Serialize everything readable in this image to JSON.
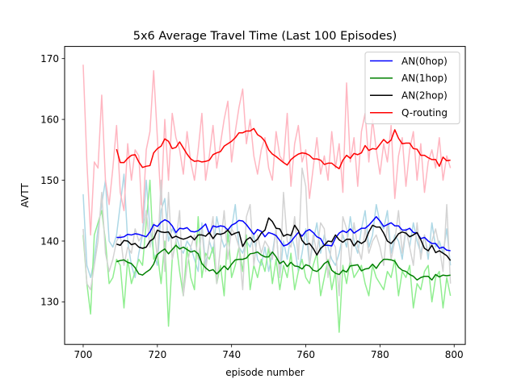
{
  "chart_data": {
    "type": "line",
    "title": "5x6 Average Travel Time (Last 100 Episodes)",
    "xlabel": "episode number",
    "ylabel": "AVTT",
    "xlim": [
      695,
      803
    ],
    "ylim": [
      123,
      172
    ],
    "xticks": [
      700,
      720,
      740,
      760,
      780,
      800
    ],
    "yticks": [
      130,
      140,
      150,
      160,
      170
    ],
    "grid": false,
    "legend_position": "top-right",
    "raw_series": [
      {
        "color": "#add8e6",
        "x_start": 700,
        "values": [
          147.7,
          136,
          134,
          137,
          142,
          146,
          150,
          140,
          139,
          141,
          146,
          151,
          140,
          136,
          134,
          138,
          141,
          150,
          142,
          138,
          136,
          145,
          147,
          140,
          142,
          141,
          139,
          138,
          140,
          139,
          137,
          135,
          143,
          136,
          140,
          138,
          144,
          141,
          139,
          140,
          142,
          146,
          139,
          138,
          140,
          139,
          141,
          137,
          136,
          139,
          135,
          138,
          142,
          134,
          140,
          137,
          141,
          139,
          135,
          138,
          142,
          136,
          140,
          143,
          138,
          141,
          139,
          137,
          136,
          138,
          141,
          139,
          144,
          140,
          138,
          142,
          145,
          139,
          141,
          146,
          143,
          142,
          145,
          138,
          141,
          140,
          137,
          142,
          139,
          143,
          140,
          138,
          141,
          137,
          143,
          139,
          140,
          138,
          142,
          136
        ]
      },
      {
        "color": "#90ee90",
        "x_start": 700,
        "values": [
          141,
          133,
          128,
          141,
          143,
          145,
          140,
          133,
          134,
          137,
          136,
          129,
          137,
          133,
          135,
          137,
          136,
          143,
          150,
          137,
          138,
          133,
          140,
          126,
          137,
          140,
          135,
          131,
          139,
          134,
          132,
          144,
          134,
          138,
          137,
          139,
          133,
          136,
          131,
          142,
          134,
          136,
          139,
          135,
          141,
          132,
          136,
          134,
          137,
          135,
          139,
          133,
          137,
          132,
          136,
          134,
          138,
          132,
          135,
          137,
          134,
          133,
          136,
          138,
          131,
          134,
          137,
          132,
          135,
          125,
          136,
          133,
          137,
          134,
          135,
          136,
          133,
          131,
          136,
          134,
          133,
          132,
          135,
          134,
          137,
          131,
          135,
          134,
          136,
          129,
          133,
          132,
          135,
          136,
          130,
          134,
          135,
          129,
          134,
          131
        ]
      },
      {
        "color": "#ffb6c1",
        "x_start": 700,
        "values": [
          169,
          153,
          141,
          153,
          152,
          164,
          150,
          146,
          152,
          159,
          148,
          145,
          156,
          150,
          155,
          154,
          143,
          155,
          158,
          168,
          157,
          146,
          160,
          150,
          161,
          157,
          155,
          151,
          158,
          153,
          150,
          155,
          161,
          150,
          154,
          159,
          152,
          156,
          160,
          163,
          153,
          158,
          162,
          165,
          156,
          160,
          154,
          151,
          155,
          157,
          152,
          150,
          158,
          154,
          153,
          161,
          149,
          156,
          159,
          153,
          155,
          147,
          152,
          157,
          151,
          154,
          150,
          158,
          152,
          156,
          148,
          166,
          153,
          157,
          149,
          158,
          161,
          153,
          160,
          155,
          151,
          156,
          153,
          159,
          147,
          154,
          157,
          149,
          155,
          158,
          150,
          156,
          148,
          153,
          155,
          152,
          157,
          150,
          154,
          152
        ]
      },
      {
        "color": "#d3d3d3",
        "x_start": 700,
        "values": [
          142,
          133,
          132,
          136,
          140,
          148,
          138,
          135,
          137,
          140,
          141,
          136,
          139,
          138,
          142,
          140,
          141,
          145,
          139,
          143,
          137,
          150,
          135,
          148,
          137,
          140,
          145,
          131,
          136,
          139,
          141,
          137,
          142,
          135,
          140,
          144,
          133,
          139,
          145,
          137,
          142,
          141,
          139,
          132,
          144,
          146,
          136,
          141,
          138,
          140,
          139,
          137,
          142,
          134,
          148,
          140,
          139,
          144,
          137,
          152,
          149,
          136,
          141,
          138,
          143,
          142,
          134,
          140,
          139,
          131,
          144,
          142,
          136,
          143,
          139,
          137,
          142,
          138,
          140,
          141,
          139,
          136,
          143,
          137,
          140,
          145,
          138,
          142,
          139,
          136,
          143,
          137,
          141,
          138,
          140,
          142,
          139,
          135,
          146,
          133
        ]
      }
    ],
    "series": [
      {
        "name": "AN(0hop)",
        "color": "#0000ff",
        "x_start": 709,
        "values": [
          140.6,
          140.6,
          140.7,
          141.1,
          141.0,
          141.2,
          141.1,
          140.9,
          140.7,
          141.5,
          142.7,
          142.4,
          143.1,
          143.5,
          143.2,
          142.5,
          141.4,
          142.1,
          142.0,
          142.2,
          141.6,
          141.5,
          141.7,
          142.2,
          142.8,
          141.2,
          142.5,
          142.3,
          142.5,
          142.4,
          141.8,
          142.6,
          142.9,
          143.4,
          143.3,
          142.7,
          141.9,
          141.1,
          141.9,
          141.6,
          140.7,
          141.4,
          141.2,
          140.9,
          140.1,
          139.2,
          139.4,
          139.9,
          140.7,
          141.4,
          140.8,
          141.6,
          141.9,
          141.4,
          140.7,
          140.4,
          139.3,
          139.3,
          139.2,
          140.5,
          141.3,
          141.7,
          141.4,
          142.0,
          141.3,
          141.7,
          142.1,
          142.1,
          142.6,
          143.3,
          144.0,
          143.3,
          142.4,
          142.7,
          143.0,
          142.5,
          142.5,
          141.8,
          141.8,
          142.1,
          141.4,
          141.3,
          140.4,
          140.6,
          140.0,
          139.6,
          139.6,
          138.8,
          139.0,
          138.5,
          138.4
        ]
      },
      {
        "name": "AN(1hop)",
        "color": "#008000",
        "x_start": 709,
        "values": [
          136.6,
          136.8,
          136.9,
          136.5,
          136.3,
          135.6,
          134.6,
          134.4,
          134.9,
          135.3,
          136.2,
          137.8,
          138.3,
          138.7,
          137.9,
          138.6,
          139.3,
          138.7,
          139.0,
          138.6,
          138.2,
          138.4,
          137.9,
          136.3,
          135.6,
          135.1,
          135.3,
          134.6,
          135.2,
          135.9,
          135.3,
          136.2,
          136.9,
          137.0,
          137.0,
          137.2,
          137.9,
          138.0,
          138.2,
          137.7,
          137.4,
          137.4,
          138.2,
          137.4,
          136.3,
          136.7,
          135.8,
          136.5,
          135.9,
          135.8,
          135.4,
          136.1,
          135.9,
          135.2,
          135.0,
          135.5,
          136.3,
          136.7,
          135.2,
          134.7,
          134.5,
          135.2,
          134.9,
          135.9,
          136.0,
          136.1,
          135.1,
          135.4,
          135.5,
          136.2,
          135.5,
          136.4,
          137.0,
          137.0,
          136.9,
          136.7,
          135.7,
          135.2,
          135.0,
          134.5,
          134.2,
          133.6,
          134.0,
          134.2,
          134.2,
          133.6,
          134.5,
          134.1,
          134.4,
          134.3,
          134.4
        ]
      },
      {
        "name": "AN(2hop)",
        "color": "#000000",
        "x_start": 709,
        "values": [
          139.5,
          139.3,
          140.1,
          140.0,
          139.4,
          139.6,
          139.0,
          138.8,
          139.0,
          140.0,
          140.4,
          141.8,
          141.5,
          141.4,
          141.5,
          140.5,
          140.8,
          140.5,
          140.3,
          140.5,
          140.8,
          140.2,
          141.0,
          141.0,
          140.8,
          141.4,
          140.4,
          141.2,
          141.1,
          141.3,
          141.8,
          141.0,
          141.3,
          141.5,
          139.1,
          140.2,
          140.6,
          139.8,
          140.3,
          141.3,
          141.8,
          143.8,
          143.2,
          142.1,
          142.0,
          140.8,
          141.1,
          140.9,
          142.6,
          141.7,
          140.1,
          139.4,
          139.6,
          138.8,
          137.7,
          138.8,
          139.3,
          140.0,
          139.9,
          141.0,
          140.2,
          139.8,
          140.3,
          140.3,
          139.2,
          140.0,
          139.6,
          140.0,
          141.5,
          142.6,
          142.3,
          142.3,
          141.3,
          140.0,
          139.6,
          140.3,
          141.2,
          141.5,
          141.3,
          140.7,
          141.0,
          141.4,
          140.2,
          138.8,
          138.4,
          139.3,
          138.1,
          138.4,
          138.0,
          137.6,
          136.8
        ]
      },
      {
        "name": "Q-routing",
        "color": "#ff0000",
        "x_start": 709,
        "values": [
          155.1,
          152.9,
          152.9,
          153.6,
          154.1,
          154.2,
          153.0,
          152.1,
          152.3,
          152.4,
          154.5,
          155.2,
          155.6,
          156.8,
          156.4,
          155.2,
          155.4,
          156.3,
          155.3,
          154.3,
          153.5,
          153.1,
          153.2,
          153.0,
          153.1,
          153.3,
          154.2,
          154.5,
          154.7,
          155.6,
          156.0,
          156.4,
          157.0,
          157.8,
          157.8,
          158.1,
          158.1,
          158.5,
          157.5,
          157.1,
          156.4,
          155.0,
          154.3,
          153.9,
          153.4,
          152.9,
          152.5,
          153.4,
          153.9,
          154.3,
          154.5,
          154.4,
          154.1,
          153.5,
          153.5,
          153.3,
          152.6,
          152.8,
          152.8,
          152.3,
          151.9,
          153.3,
          154.1,
          153.6,
          154.4,
          154.2,
          154.5,
          155.7,
          154.9,
          155.2,
          155.1,
          155.9,
          156.7,
          156.1,
          156.6,
          158.3,
          156.9,
          156.0,
          156.1,
          156.1,
          155.2,
          155.1,
          154.1,
          154.1,
          153.7,
          153.4,
          153.4,
          152.3,
          153.8,
          153.2,
          153.3
        ]
      }
    ]
  }
}
